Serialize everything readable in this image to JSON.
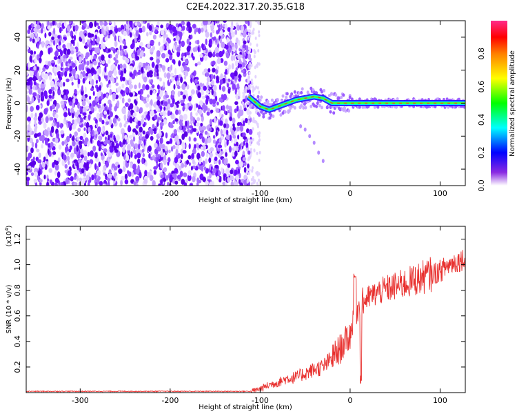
{
  "title": "C2E4.2022.317.20.35.G18",
  "chart_data": [
    {
      "type": "heatmap",
      "xlabel": "Height of straight line (km)",
      "ylabel": "Frequency (Hz)",
      "xlim": [
        -360,
        128
      ],
      "ylim": [
        -50,
        50
      ],
      "xticks": [
        -300,
        -200,
        -100,
        0,
        100
      ],
      "yticks": [
        -40,
        -20,
        0,
        20,
        40
      ],
      "colorbar": {
        "label": "Normalized spectral amplitude",
        "range": [
          0,
          1
        ],
        "ticks": [
          "0.0",
          "0.2",
          "0.4",
          "0.6",
          "0.8"
        ],
        "colors": [
          "#ffffff",
          "#7f00ff",
          "#0000ff",
          "#00ffff",
          "#00ff00",
          "#ffff00",
          "#ff8000",
          "#ff0000",
          "#ff00ff"
        ]
      },
      "noise_region": {
        "x_range": [
          -360,
          -110
        ],
        "freq_range": [
          -50,
          50
        ]
      },
      "signal_trace": {
        "x": [
          -113,
          -100,
          -90,
          -80,
          -70,
          -60,
          -50,
          -40,
          -30,
          -20,
          -10,
          0,
          20,
          50,
          80,
          128
        ],
        "freq": [
          4,
          -2,
          -4,
          -2,
          0,
          2,
          3,
          4,
          3,
          0,
          0,
          0,
          0,
          0,
          0,
          0
        ]
      },
      "mirror_trace": {
        "x": [
          -55,
          -50,
          -45,
          -40,
          -35,
          -30
        ],
        "freq": [
          -14,
          -16,
          -20,
          -24,
          -30,
          -35
        ]
      }
    },
    {
      "type": "line",
      "xlabel": "Height of straight line (km)",
      "ylabel": "SNR (10 * v/v)",
      "yscale_label": "(x10",
      "yscale_exp": "4",
      "yscale_close": ")",
      "xlim": [
        -360,
        128
      ],
      "ylim": [
        0,
        1.3
      ],
      "xticks": [
        -300,
        -200,
        -100,
        0,
        100
      ],
      "yticks": [
        "0.2",
        "0.4",
        "0.6",
        "0.8",
        "1.0",
        "1.2"
      ],
      "series": [
        {
          "color": "#e8302e",
          "x": [
            -360,
            -200,
            -110,
            -100,
            -90,
            -80,
            -70,
            -60,
            -50,
            -40,
            -30,
            -20,
            -10,
            -5,
            0,
            5,
            10,
            20,
            30,
            40,
            60,
            80,
            100,
            110,
            120,
            128
          ],
          "y": [
            0.01,
            0.01,
            0.01,
            0.03,
            0.06,
            0.08,
            0.11,
            0.12,
            0.15,
            0.18,
            0.2,
            0.27,
            0.35,
            0.4,
            0.45,
            0.62,
            0.68,
            0.74,
            0.78,
            0.81,
            0.85,
            0.9,
            0.95,
            1.0,
            1.03,
            1.05
          ]
        }
      ]
    }
  ]
}
